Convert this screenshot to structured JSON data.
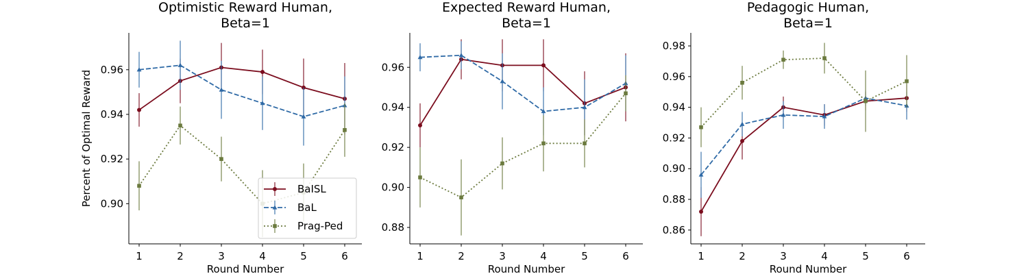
{
  "figure": {
    "xlabel": "Round Number",
    "ylabel": "Percent of Optimal Reward"
  },
  "chart_data": [
    {
      "type": "line",
      "title": [
        "Optimistic Reward Human,",
        "Beta=1"
      ],
      "xlabel": "Round Number",
      "ylabel": "Percent of Optimal Reward",
      "x": [
        1,
        2,
        3,
        4,
        5,
        6
      ],
      "ylim": [
        0.882,
        0.9765
      ],
      "yticks": [
        0.9,
        0.92,
        0.94,
        0.96
      ],
      "legend": "lower-right",
      "series": [
        {
          "name": "BaISL",
          "color": "#7b0d1e",
          "dash": "solid",
          "marker": "circle",
          "values": [
            0.942,
            0.955,
            0.961,
            0.959,
            0.952,
            0.947
          ],
          "err": [
            0.0075,
            0.01,
            0.011,
            0.01,
            0.013,
            0.016
          ]
        },
        {
          "name": "BaL",
          "color": "#2f6aa6",
          "dash": "dashed",
          "marker": "triangle",
          "values": [
            0.96,
            0.962,
            0.951,
            0.945,
            0.939,
            0.944
          ],
          "err": [
            0.008,
            0.011,
            0.013,
            0.012,
            0.013,
            0.013
          ]
        },
        {
          "name": "Prag-Ped",
          "color": "#6b7a3e",
          "dash": "dotted",
          "marker": "square",
          "values": [
            0.908,
            0.935,
            0.92,
            0.9,
            0.905,
            0.933
          ],
          "err": [
            0.011,
            0.0085,
            0.01,
            0.015,
            0.013,
            0.012
          ]
        }
      ]
    },
    {
      "type": "line",
      "title": [
        "Expected Reward Human,",
        "Beta=1"
      ],
      "xlabel": "Round Number",
      "ylabel": "",
      "x": [
        1,
        2,
        3,
        4,
        5,
        6
      ],
      "ylim": [
        0.8718,
        0.9772
      ],
      "yticks": [
        0.88,
        0.9,
        0.92,
        0.94,
        0.96
      ],
      "series": [
        {
          "name": "BaISL",
          "color": "#7b0d1e",
          "dash": "solid",
          "marker": "circle",
          "values": [
            0.931,
            0.964,
            0.961,
            0.961,
            0.942,
            0.95
          ],
          "err": [
            0.011,
            0.01,
            0.013,
            0.013,
            0.016,
            0.017
          ]
        },
        {
          "name": "BaL",
          "color": "#2f6aa6",
          "dash": "dashed",
          "marker": "triangle",
          "values": [
            0.965,
            0.966,
            0.953,
            0.938,
            0.94,
            0.952
          ],
          "err": [
            0.007,
            0.007,
            0.014,
            0.012,
            0.014,
            0.014
          ]
        },
        {
          "name": "Prag-Ped",
          "color": "#6b7a3e",
          "dash": "dotted",
          "marker": "square",
          "values": [
            0.905,
            0.895,
            0.912,
            0.922,
            0.922,
            0.947
          ],
          "err": [
            0.015,
            0.019,
            0.013,
            0.014,
            0.012,
            0.009
          ]
        }
      ]
    },
    {
      "type": "line",
      "title": [
        "Pedagogic Human,",
        "Beta=1"
      ],
      "xlabel": "Round Number",
      "ylabel": "",
      "x": [
        1,
        2,
        3,
        4,
        5,
        6
      ],
      "ylim": [
        0.851,
        0.9885
      ],
      "yticks": [
        0.86,
        0.88,
        0.9,
        0.92,
        0.94,
        0.96,
        0.98
      ],
      "series": [
        {
          "name": "BaISL",
          "color": "#7b0d1e",
          "dash": "solid",
          "marker": "circle",
          "values": [
            0.872,
            0.918,
            0.94,
            0.935,
            0.944,
            0.946
          ],
          "err": [
            0.016,
            0.012,
            0.007,
            0.007,
            0.006,
            0.009
          ]
        },
        {
          "name": "BaL",
          "color": "#2f6aa6",
          "dash": "dashed",
          "marker": "triangle",
          "values": [
            0.896,
            0.929,
            0.935,
            0.934,
            0.946,
            0.941
          ],
          "err": [
            0.015,
            0.008,
            0.009,
            0.008,
            0.005,
            0.009
          ]
        },
        {
          "name": "Prag-Ped",
          "color": "#6b7a3e",
          "dash": "dotted",
          "marker": "square",
          "values": [
            0.927,
            0.956,
            0.971,
            0.972,
            0.944,
            0.957
          ],
          "err": [
            0.013,
            0.011,
            0.006,
            0.01,
            0.02,
            0.017
          ]
        }
      ]
    }
  ]
}
